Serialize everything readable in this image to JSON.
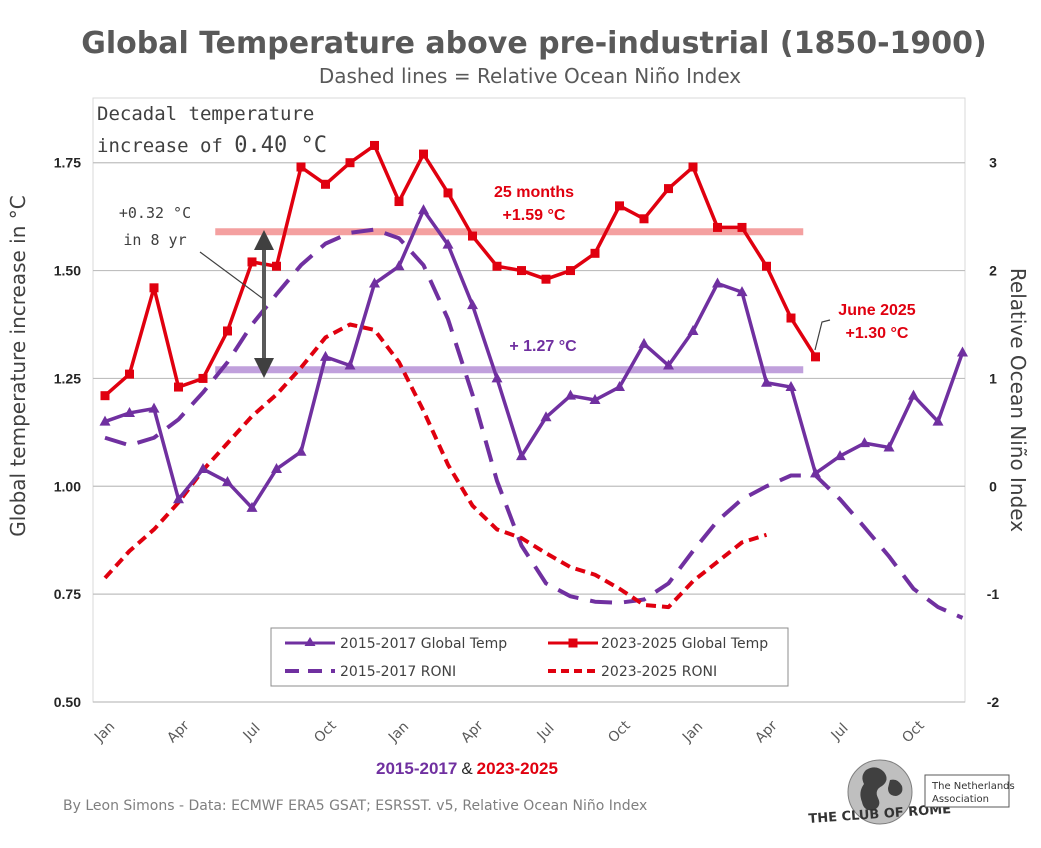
{
  "chart_data": {
    "type": "line",
    "title": "Global Temperature above pre-industrial (1850-1900)",
    "subtitle": "Dashed lines = Relative Ocean Niño Index",
    "ylabel": "Global temperature increase in °C",
    "y2label": "Relative Ocean Niño Index",
    "ylim": [
      0.5,
      1.9
    ],
    "y2lim": [
      -2,
      3.6
    ],
    "yticks": [
      "0.50",
      "0.75",
      "1.00",
      "1.25",
      "1.50",
      "1.75"
    ],
    "y2ticks": [
      "-2",
      "-1",
      "0",
      "1",
      "2",
      "3"
    ],
    "y2tick_values": [
      -2,
      -1,
      0,
      1,
      2,
      3
    ],
    "ytick_values": [
      0.5,
      0.75,
      1.0,
      1.25,
      1.5,
      1.75
    ],
    "x_tick_labels": [
      "Jan",
      "Apr",
      "Jul",
      "Oct",
      "Jan",
      "Apr",
      "Jul",
      "Oct",
      "Jan",
      "Apr",
      "Jul",
      "Oct"
    ],
    "x_tick_positions": [
      0,
      3,
      6,
      9,
      12,
      15,
      18,
      21,
      24,
      27,
      30,
      33
    ],
    "x_label_left": "2015-2017",
    "x_label_amp": "&",
    "x_label_right": "2023-2025",
    "grid": true,
    "legend_position": "bottom-center",
    "series": [
      {
        "name": "2015-2017 Global Temp",
        "axis": "left",
        "style": "solid-triangle",
        "color": "#7030a0",
        "x": [
          0,
          1,
          2,
          3,
          4,
          5,
          6,
          7,
          8,
          9,
          10,
          11,
          12,
          13,
          14,
          15,
          16,
          17,
          18,
          19,
          20,
          21,
          22,
          23,
          24,
          25,
          26,
          27,
          28,
          29,
          30,
          31,
          32,
          33,
          34,
          35
        ],
        "values": [
          1.15,
          1.17,
          1.18,
          0.97,
          1.04,
          1.01,
          0.95,
          1.04,
          1.08,
          1.3,
          1.28,
          1.47,
          1.51,
          1.64,
          1.56,
          1.42,
          1.25,
          1.07,
          1.16,
          1.21,
          1.2,
          1.23,
          1.33,
          1.28,
          1.36,
          1.47,
          1.45,
          1.24,
          1.23,
          1.03,
          1.07,
          1.1,
          1.09,
          1.21,
          1.15,
          1.31
        ]
      },
      {
        "name": "2023-2025 Global Temp",
        "axis": "left",
        "style": "solid-square",
        "color": "#e0000f",
        "x": [
          0,
          1,
          2,
          3,
          4,
          5,
          6,
          7,
          8,
          9,
          10,
          11,
          12,
          13,
          14,
          15,
          16,
          17,
          18,
          19,
          20,
          21,
          22,
          23,
          24,
          25,
          26,
          27,
          28,
          29
        ],
        "values": [
          1.21,
          1.26,
          1.46,
          1.23,
          1.25,
          1.36,
          1.52,
          1.51,
          1.74,
          1.7,
          1.75,
          1.79,
          1.66,
          1.77,
          1.68,
          1.58,
          1.51,
          1.5,
          1.48,
          1.5,
          1.54,
          1.65,
          1.62,
          1.69,
          1.74,
          1.6,
          1.6,
          1.51,
          1.39,
          1.3
        ]
      },
      {
        "name": "2015-2017 RONI",
        "axis": "right",
        "style": "dashed",
        "color": "#7030a0",
        "x": [
          0,
          1,
          2,
          3,
          4,
          5,
          6,
          7,
          8,
          9,
          10,
          11,
          12,
          13,
          14,
          15,
          16,
          17,
          18,
          19,
          20,
          21,
          22,
          23,
          24,
          25,
          26,
          27,
          28,
          29,
          30,
          31,
          32,
          33,
          34,
          35
        ],
        "values": [
          0.45,
          0.38,
          0.45,
          0.62,
          0.87,
          1.15,
          1.5,
          1.78,
          2.05,
          2.25,
          2.35,
          2.38,
          2.3,
          2.05,
          1.55,
          0.85,
          0.05,
          -0.55,
          -0.9,
          -1.02,
          -1.07,
          -1.08,
          -1.05,
          -0.9,
          -0.6,
          -0.32,
          -0.12,
          0.0,
          0.1,
          0.1,
          -0.12,
          -0.38,
          -0.65,
          -0.95,
          -1.12,
          -1.22
        ]
      },
      {
        "name": "2023-2025 RONI",
        "axis": "right",
        "style": "dashed",
        "color": "#e0000f",
        "x": [
          0,
          1,
          2,
          3,
          4,
          5,
          6,
          7,
          8,
          9,
          10,
          11,
          12,
          13,
          14,
          15,
          16,
          17,
          18,
          19,
          20,
          21,
          22,
          23,
          24,
          25,
          26,
          27
        ],
        "values": [
          -0.85,
          -0.6,
          -0.4,
          -0.15,
          0.15,
          0.4,
          0.65,
          0.85,
          1.1,
          1.38,
          1.5,
          1.45,
          1.15,
          0.7,
          0.2,
          -0.18,
          -0.4,
          -0.48,
          -0.62,
          -0.75,
          -0.82,
          -0.95,
          -1.1,
          -1.12,
          -0.88,
          -0.7,
          -0.52,
          -0.45
        ]
      }
    ],
    "reference_lines": [
      {
        "label": "+1.59 °C",
        "value": 1.59,
        "x_start": 4.5,
        "x_end": 28.5,
        "color": "#f4a0a0"
      },
      {
        "label": "+1.27 °C",
        "value": 1.27,
        "x_start": 4.5,
        "x_end": 28.5,
        "color": "#c0a0dc"
      }
    ],
    "annotations": {
      "decadal_line1": "Decadal temperature",
      "decadal_line2_prefix": "increase of ",
      "decadal_value": "0.40 °C",
      "increase_line1": "+0.32 °C",
      "increase_line2": "in 8 yr",
      "months_line1": "25 months",
      "months_line2": "+1.59 °C",
      "purple_level": "+ 1.27 °C",
      "june_line1": "June 2025",
      "june_line2": "+1.30 °C"
    }
  },
  "credit": "By Leon Simons - Data: ECMWF ERA5 GSAT; ESRSST. v5, Relative Ocean Niño Index",
  "logo": {
    "name": "THE CLUB OF ROME",
    "association_line1": "The Netherlands",
    "association_line2": "Association"
  }
}
